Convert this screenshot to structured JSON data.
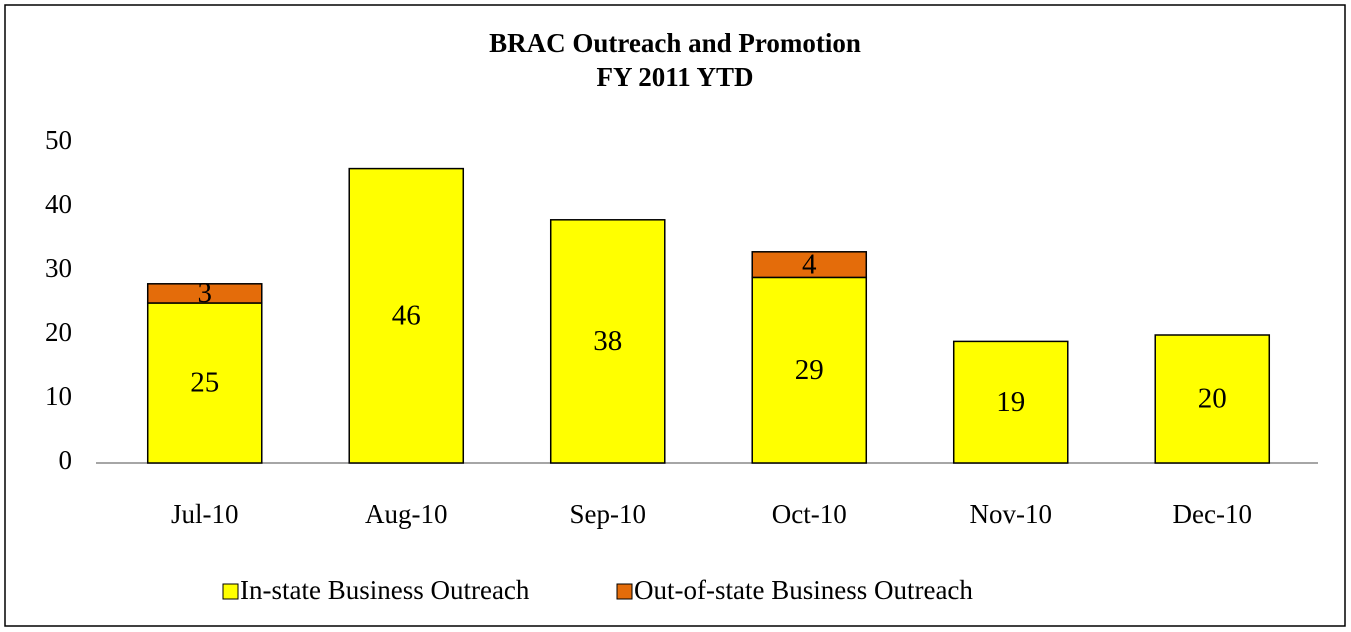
{
  "chart_data": {
    "type": "bar",
    "stacked": true,
    "title": "BRAC Outreach and Promotion",
    "subtitle": "FY 2011 YTD",
    "categories": [
      "Jul-10",
      "Aug-10",
      "Sep-10",
      "Oct-10",
      "Nov-10",
      "Dec-10"
    ],
    "series": [
      {
        "name": "In-state Business Outreach",
        "color": "#ffff00",
        "values": [
          25,
          46,
          38,
          29,
          19,
          20
        ]
      },
      {
        "name": "Out-of-state Business Outreach",
        "color": "#e46c0a",
        "values": [
          3,
          null,
          null,
          4,
          null,
          null
        ]
      }
    ],
    "ylim": [
      0,
      50
    ],
    "yticks": [
      0,
      10,
      20,
      30,
      40,
      50
    ],
    "grid": false,
    "legend": "bottom"
  }
}
